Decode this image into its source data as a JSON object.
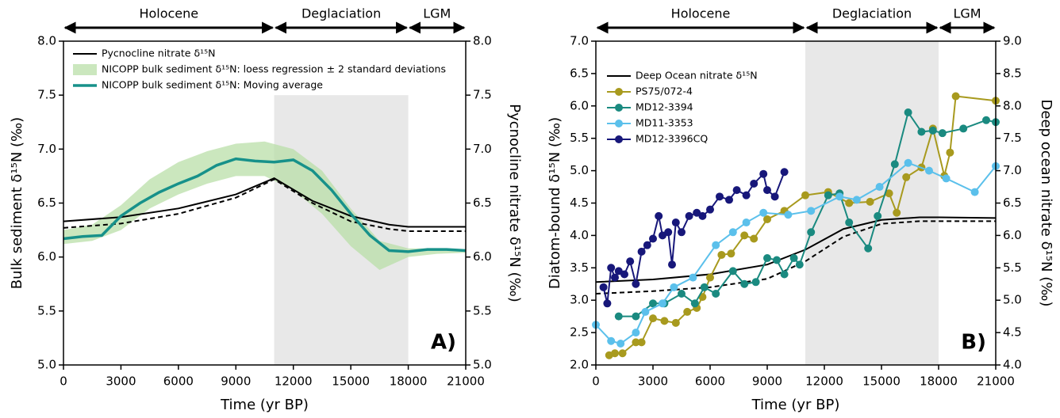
{
  "chart_data": [
    {
      "type": "line",
      "xlabel": "Time (yr BP)",
      "ylabel": "Bulk sediment δ¹⁵N (‰)",
      "y2label": "Pycnocline nitrate δ¹⁵N (‰)",
      "panel_label": "A)",
      "xlim": [
        0,
        21000
      ],
      "xticks": [
        0,
        3000,
        6000,
        9000,
        12000,
        15000,
        18000,
        21000
      ],
      "ylim": [
        5,
        8
      ],
      "yticks": [
        {
          "value": 5,
          "label": "5.0"
        },
        5.5,
        {
          "value": 6,
          "label": "6.0"
        },
        6.5,
        {
          "value": 7,
          "label": "7.0"
        },
        7.5,
        {
          "value": 8,
          "label": "8.0"
        }
      ],
      "y2lim": [
        5,
        8
      ],
      "y2ticks": [
        {
          "value": 5,
          "label": "5.0"
        },
        5.5,
        {
          "value": 6,
          "label": "6.0"
        },
        6.5,
        {
          "value": 7,
          "label": "7.0"
        },
        7.5,
        {
          "value": 8,
          "label": "8.0"
        }
      ],
      "periods": [
        {
          "label": "Holocene",
          "start": 0,
          "end": 11000
        },
        {
          "label": "Deglaciation",
          "start": 11000,
          "end": 18000
        },
        {
          "label": "LGM",
          "start": 18000,
          "end": 21000
        }
      ],
      "shade": {
        "x": [
          11000,
          18000
        ],
        "y": [
          5,
          7.5
        ]
      },
      "band": {
        "name": "NICOPP bulk sediment δ¹⁵N: loess regression ± 2 standard deviations",
        "color": "#b9dfa8",
        "x": [
          0,
          1500,
          3000,
          4500,
          6000,
          7500,
          9000,
          10500,
          12000,
          13500,
          15000,
          16500,
          18000,
          19500,
          21000
        ],
        "upper": [
          6.25,
          6.3,
          6.48,
          6.72,
          6.88,
          6.98,
          7.05,
          7.07,
          7.0,
          6.8,
          6.45,
          6.15,
          6.08,
          6.08,
          6.07
        ],
        "lower": [
          6.12,
          6.15,
          6.25,
          6.45,
          6.58,
          6.68,
          6.75,
          6.75,
          6.62,
          6.4,
          6.1,
          5.88,
          6.0,
          6.03,
          6.04
        ]
      },
      "series": [
        {
          "name": "Pycnocline nitrate δ¹⁵N",
          "color": "#000000",
          "axis": "y2",
          "width": 2,
          "x": [
            0,
            3000,
            6000,
            9000,
            11000,
            13000,
            15000,
            17000,
            18000,
            21000
          ],
          "values": [
            6.33,
            6.37,
            6.45,
            6.58,
            6.73,
            6.52,
            6.38,
            6.3,
            6.28,
            6.28
          ]
        },
        {
          "color": "#000000",
          "axis": "y2",
          "dash": true,
          "width": 2,
          "x": [
            0,
            3000,
            6000,
            9000,
            11000,
            13000,
            15000,
            17000,
            18000,
            21000
          ],
          "values": [
            6.27,
            6.31,
            6.4,
            6.55,
            6.72,
            6.5,
            6.33,
            6.26,
            6.24,
            6.24
          ]
        },
        {
          "name": "NICOPP bulk sediment δ¹⁵N: Moving average",
          "color": "#17918a",
          "width": 3.5,
          "x": [
            0,
            1000,
            2000,
            3000,
            4000,
            5000,
            6000,
            7000,
            8000,
            9000,
            10000,
            11000,
            12000,
            13000,
            14000,
            15000,
            16000,
            17000,
            18000,
            19000,
            20000,
            21000
          ],
          "values": [
            6.17,
            6.19,
            6.2,
            6.38,
            6.5,
            6.6,
            6.68,
            6.75,
            6.85,
            6.91,
            6.89,
            6.88,
            6.9,
            6.8,
            6.62,
            6.4,
            6.2,
            6.06,
            6.05,
            6.07,
            6.07,
            6.06
          ]
        }
      ]
    },
    {
      "type": "line",
      "xlabel": "Time (yr BP)",
      "ylabel": "Diatom-bound δ¹⁵N (‰)",
      "y2label": "Deep ocean nitrate δ¹⁵N (‰)",
      "panel_label": "B)",
      "xlim": [
        0,
        21000
      ],
      "xticks": [
        0,
        3000,
        6000,
        9000,
        12000,
        15000,
        18000,
        21000
      ],
      "ylim": [
        2,
        7
      ],
      "yticks": [
        {
          "value": 2,
          "label": "2.0"
        },
        2.5,
        {
          "value": 3,
          "label": "3.0"
        },
        3.5,
        {
          "value": 4,
          "label": "4.0"
        },
        4.5,
        {
          "value": 5,
          "label": "5.0"
        },
        5.5,
        {
          "value": 6,
          "label": "6.0"
        },
        6.5,
        {
          "value": 7,
          "label": "7.0"
        }
      ],
      "y2lim": [
        4,
        9
      ],
      "y2ticks": [
        {
          "value": 4,
          "label": "4.0"
        },
        4.5,
        {
          "value": 5,
          "label": "5.0"
        },
        5.5,
        {
          "value": 6,
          "label": "6.0"
        },
        6.5,
        {
          "value": 7,
          "label": "7.0"
        },
        7.5,
        {
          "value": 8,
          "label": "8.0"
        },
        8.5,
        {
          "value": 9,
          "label": "9.0"
        }
      ],
      "periods": [
        {
          "label": "Holocene",
          "start": 0,
          "end": 11000
        },
        {
          "label": "Deglaciation",
          "start": 11000,
          "end": 18000
        },
        {
          "label": "LGM",
          "start": 18000,
          "end": 21000
        }
      ],
      "shade": {
        "x": [
          11000,
          18000
        ],
        "y": [
          2,
          7
        ]
      },
      "series": [
        {
          "name": "Deep Ocean nitrate δ¹⁵N",
          "color": "#000000",
          "axis": "y2",
          "width": 2,
          "x": [
            0,
            3000,
            6000,
            9000,
            11000,
            13000,
            15000,
            17000,
            18000,
            21000
          ],
          "values": [
            5.28,
            5.32,
            5.4,
            5.55,
            5.78,
            6.1,
            6.24,
            6.28,
            6.28,
            6.27
          ]
        },
        {
          "color": "#000000",
          "axis": "y2",
          "dash": true,
          "width": 2,
          "x": [
            0,
            3000,
            6000,
            9000,
            11000,
            13000,
            15000,
            17000,
            18000,
            21000
          ],
          "values": [
            5.1,
            5.14,
            5.2,
            5.33,
            5.6,
            5.98,
            6.18,
            6.22,
            6.22,
            6.22
          ]
        },
        {
          "name": "PS75/072-4",
          "color": "#a89a1e",
          "marker": true,
          "width": 2,
          "x": [
            700,
            1000,
            1400,
            2100,
            2400,
            3000,
            3600,
            4200,
            4800,
            5300,
            5600,
            6000,
            6600,
            7100,
            7800,
            8300,
            9000,
            9900,
            11000,
            12200,
            13300,
            14400,
            15400,
            15800,
            16300,
            17100,
            17700,
            18300,
            18600,
            18900,
            21000
          ],
          "values": [
            2.15,
            2.18,
            2.18,
            2.35,
            2.35,
            2.72,
            2.68,
            2.65,
            2.82,
            2.88,
            3.05,
            3.35,
            3.7,
            3.72,
            4.0,
            3.95,
            4.25,
            4.38,
            4.62,
            4.67,
            4.5,
            4.52,
            4.65,
            4.35,
            4.9,
            5.05,
            5.65,
            4.92,
            5.28,
            6.15,
            6.08
          ]
        },
        {
          "name": "MD12-3394",
          "color": "#1a8a80",
          "marker": true,
          "width": 2,
          "x": [
            1200,
            2100,
            3000,
            3600,
            4500,
            5200,
            5700,
            6300,
            7200,
            7800,
            8400,
            9000,
            9500,
            9900,
            10400,
            10700,
            11300,
            12200,
            12800,
            13300,
            14300,
            14800,
            15700,
            16400,
            17100,
            17700,
            18200,
            19300,
            20500,
            21000
          ],
          "values": [
            2.75,
            2.75,
            2.95,
            2.95,
            3.1,
            2.95,
            3.2,
            3.1,
            3.45,
            3.25,
            3.28,
            3.65,
            3.62,
            3.4,
            3.65,
            3.55,
            4.05,
            4.62,
            4.65,
            4.2,
            3.8,
            4.3,
            5.1,
            5.9,
            5.6,
            5.62,
            5.58,
            5.65,
            5.78,
            5.75
          ]
        },
        {
          "name": "MD11-3353",
          "color": "#5bc0eb",
          "marker": true,
          "width": 2,
          "x": [
            0,
            800,
            1300,
            2100,
            2600,
            3500,
            4100,
            5100,
            6300,
            7200,
            7900,
            8800,
            10100,
            11300,
            12800,
            13700,
            14900,
            16400,
            17500,
            18400,
            19900,
            21000
          ],
          "values": [
            2.62,
            2.37,
            2.33,
            2.5,
            2.82,
            2.95,
            3.2,
            3.35,
            3.85,
            4.05,
            4.2,
            4.35,
            4.32,
            4.38,
            4.6,
            4.55,
            4.75,
            5.12,
            5.0,
            4.88,
            4.67,
            5.07
          ]
        },
        {
          "name": "MD12-3396CQ",
          "color": "#17177a",
          "marker": true,
          "width": 2,
          "x": [
            400,
            600,
            800,
            1000,
            1200,
            1500,
            1800,
            2100,
            2400,
            2700,
            3000,
            3300,
            3500,
            3800,
            4000,
            4200,
            4500,
            4900,
            5300,
            5600,
            6000,
            6500,
            7000,
            7400,
            7900,
            8300,
            8800,
            9000,
            9400,
            9900
          ],
          "values": [
            3.2,
            2.95,
            3.5,
            3.35,
            3.45,
            3.4,
            3.6,
            3.25,
            3.75,
            3.85,
            3.95,
            4.3,
            4.0,
            4.05,
            3.55,
            4.2,
            4.05,
            4.3,
            4.35,
            4.3,
            4.4,
            4.6,
            4.55,
            4.7,
            4.62,
            4.8,
            4.95,
            4.7,
            4.6,
            4.98
          ]
        }
      ]
    }
  ]
}
